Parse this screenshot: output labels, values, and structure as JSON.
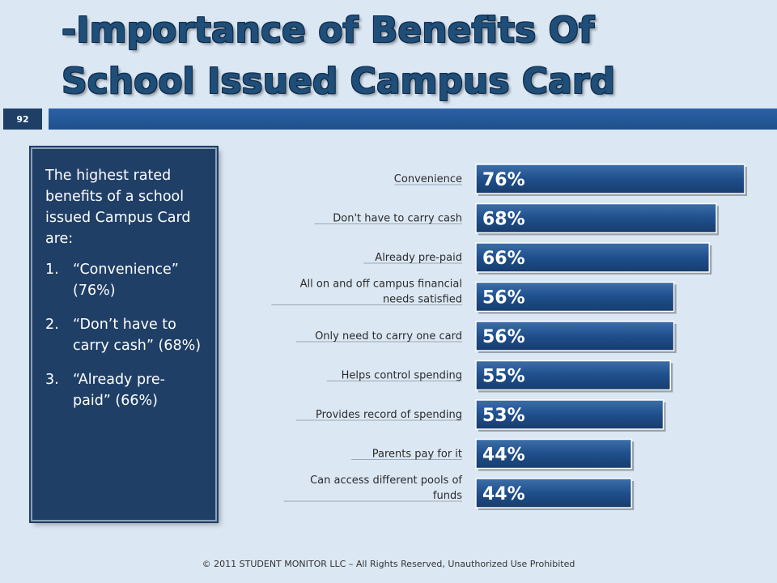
{
  "slide": {
    "title_line1": "-Importance of Benefits Of",
    "title_line2": "School Issued Campus Card",
    "page_number": "92",
    "footer": "© 2011 STUDENT MONITOR LLC – All Rights Reserved, Unauthorized Use Prohibited"
  },
  "sidebar": {
    "intro": "The highest rated benefits of a school issued Campus Card are:",
    "items": [
      {
        "number": "1.",
        "text": "“Convenience” (76%)"
      },
      {
        "number": "2.",
        "text": "“Don’t have to carry cash” (68%)"
      },
      {
        "number": "3.",
        "text": "“Already pre-paid” (66%)"
      }
    ]
  },
  "chart_data": {
    "type": "bar",
    "orientation": "horizontal",
    "categories": [
      "Convenience",
      "Don't have to carry cash",
      "Already pre-paid",
      "All on and off campus financial needs satisfied",
      "Only need to carry one card",
      "Helps control spending",
      "Provides record of spending",
      "Parents pay for it",
      "Can access different pools of funds"
    ],
    "values": [
      76,
      68,
      66,
      56,
      56,
      55,
      53,
      44,
      44
    ],
    "value_labels": [
      "76%",
      "68%",
      "66%",
      "56%",
      "56%",
      "55%",
      "53%",
      "44%",
      "44%"
    ],
    "xlim": [
      0,
      76
    ],
    "bar_color": "#1f4f8c",
    "grid": false,
    "legend": "none"
  }
}
